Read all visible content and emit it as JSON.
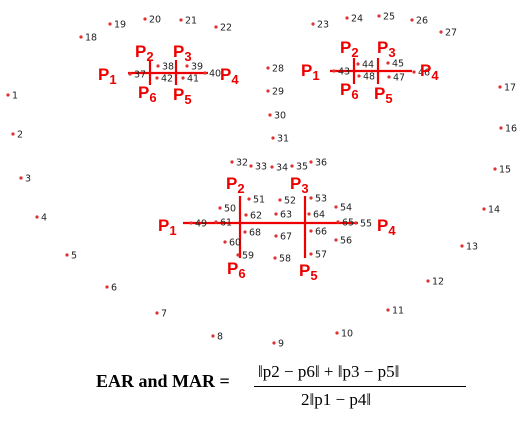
{
  "landmarks": {
    "1": "1",
    "2": "2",
    "3": "3",
    "4": "4",
    "5": "5",
    "6": "6",
    "7": "7",
    "8": "8",
    "9": "9",
    "10": "10",
    "11": "11",
    "12": "12",
    "13": "13",
    "14": "14",
    "15": "15",
    "16": "16",
    "17": "17",
    "18": "18",
    "19": "19",
    "20": "20",
    "21": "21",
    "22": "22",
    "23": "23",
    "24": "24",
    "25": "25",
    "26": "26",
    "27": "27",
    "28": "28",
    "29": "29",
    "30": "30",
    "31": "31",
    "32": "32",
    "33": "33",
    "34": "34",
    "35": "35",
    "36": "36",
    "37": "37",
    "38": "38",
    "39": "39",
    "40": "40",
    "41": "41",
    "42": "42",
    "43": "43",
    "44": "44",
    "45": "45",
    "46": "46",
    "47": "47",
    "48": "48",
    "49": "49",
    "50": "50",
    "51": "51",
    "52": "52",
    "53": "53",
    "54": "54",
    "55": "55",
    "56": "56",
    "57": "57",
    "58": "58",
    "59": "59",
    "60": "60",
    "61": "61",
    "62": "62",
    "63": "63",
    "64": "64",
    "65": "65",
    "66": "66",
    "67": "67",
    "68": "68"
  },
  "points": {
    "p1": "P1",
    "p2": "P2",
    "p3": "P3",
    "p4": "P4",
    "p5": "P5",
    "p6": "P6"
  },
  "formula": {
    "lhs": "EAR and MAR =",
    "numerator": "‖p2 − p6‖ + ‖p3 − p5‖",
    "denominator": "2‖p1 − p4‖"
  },
  "colors": {
    "accent": "#ee0000",
    "landmark_dot": "#e03030",
    "text": "#222222"
  }
}
